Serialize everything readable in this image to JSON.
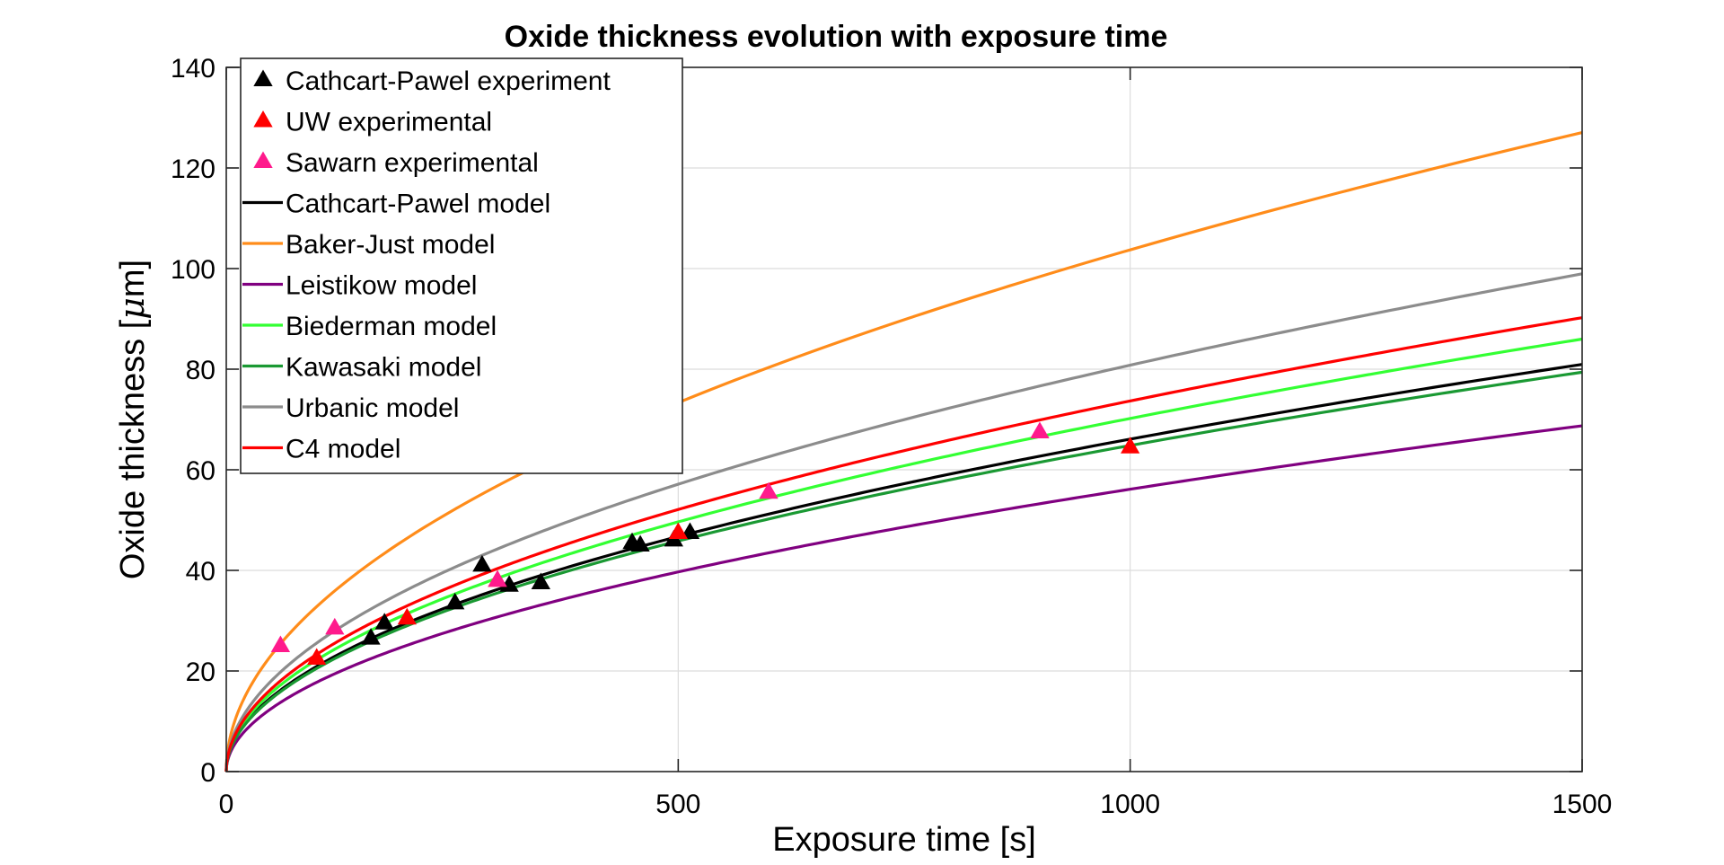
{
  "chart_data": {
    "type": "line",
    "title": "Oxide thickness evolution with exposure time",
    "xlabel": "Exposure time [s]",
    "ylabel_main": "Oxide thickness [",
    "ylabel_mu": "μ",
    "ylabel_tail": "m]",
    "xlim": [
      0,
      1500
    ],
    "ylim": [
      0,
      140
    ],
    "xticks": [
      0,
      500,
      1000,
      1500
    ],
    "yticks": [
      0,
      20,
      40,
      60,
      80,
      100,
      120,
      140
    ],
    "grid": true,
    "legend_position": "top-left",
    "series": [
      {
        "name": "Cathcart-Pawel experiment",
        "kind": "marker",
        "color": "#000000",
        "points": [
          [
            160,
            26.5
          ],
          [
            175,
            29.5
          ],
          [
            253,
            33.5
          ],
          [
            283,
            41
          ],
          [
            313,
            37
          ],
          [
            348,
            37.5
          ],
          [
            449,
            45.5
          ],
          [
            458,
            45
          ],
          [
            495,
            46
          ],
          [
            513,
            47.5
          ]
        ]
      },
      {
        "name": "UW experimental",
        "kind": "marker",
        "color": "#ff0000",
        "points": [
          [
            100,
            22.5
          ],
          [
            200,
            30.5
          ],
          [
            300,
            38
          ],
          [
            500,
            47.5
          ],
          [
            1000,
            64.5
          ]
        ]
      },
      {
        "name": "Sawarn experimental",
        "kind": "marker",
        "color": "#ff1a8c",
        "points": [
          [
            60,
            25
          ],
          [
            120,
            28.5
          ],
          [
            300,
            38
          ],
          [
            600,
            55.5
          ],
          [
            900,
            67.5
          ]
        ]
      },
      {
        "name": "Cathcart-Pawel model",
        "kind": "line",
        "color": "#000000",
        "coef": 2.09,
        "x_end": 1500
      },
      {
        "name": "Baker-Just model",
        "kind": "line",
        "color": "#ff8c1a",
        "coef": 3.28,
        "x_end": 1500
      },
      {
        "name": "Leistikow model",
        "kind": "line",
        "color": "#800080",
        "coef": 1.775,
        "x_end": 1500
      },
      {
        "name": "Biederman model",
        "kind": "line",
        "color": "#33ff33",
        "coef": 2.22,
        "x_end": 1500
      },
      {
        "name": "Kawasaki model",
        "kind": "line",
        "color": "#1a9933",
        "coef": 2.05,
        "x_end": 1500
      },
      {
        "name": "Urbanic model",
        "kind": "line",
        "color": "#8c8c8c",
        "coef": 2.555,
        "x_end": 1500
      },
      {
        "name": "C4 model",
        "kind": "line",
        "color": "#ff0000",
        "coef": 2.33,
        "x_end": 1500
      }
    ]
  }
}
